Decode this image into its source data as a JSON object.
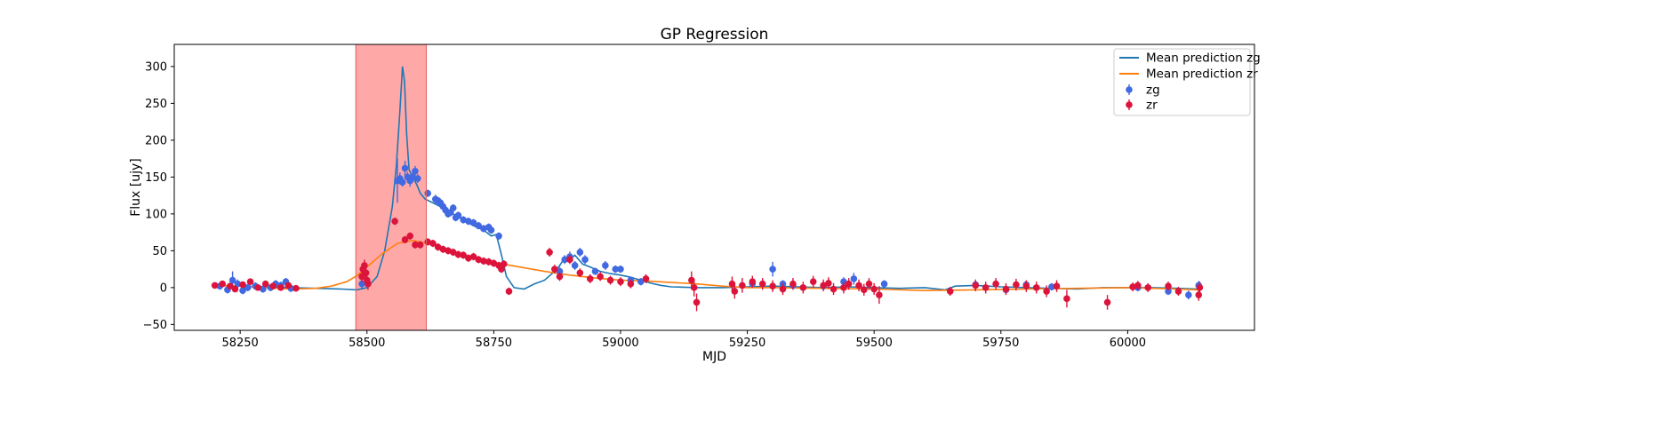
{
  "chart_data": {
    "type": "scatter",
    "title": "GP Regression",
    "xlabel": "MJD",
    "ylabel": "Flux [ujy]",
    "xlim": [
      58120,
      60250
    ],
    "ylim": [
      -58,
      330
    ],
    "xticks": [
      58250,
      58500,
      58750,
      59000,
      59250,
      59500,
      59750,
      60000
    ],
    "yticks": [
      -50,
      0,
      50,
      100,
      150,
      200,
      250,
      300
    ],
    "grid": false,
    "legend_position": "top-right",
    "highlight_region": {
      "x": [
        58478,
        58617
      ],
      "color": "#ff9f9f"
    },
    "lines": [
      {
        "name": "Mean prediction zg",
        "color": "#1f77b4",
        "x": [
          58200,
          58250,
          58300,
          58350,
          58400,
          58450,
          58480,
          58500,
          58520,
          58535,
          58550,
          58558,
          58565,
          58570,
          58574,
          58578,
          58583,
          58590,
          58598,
          58605,
          58615,
          58630,
          58650,
          58670,
          58690,
          58710,
          58730,
          58745,
          58755,
          58765,
          58775,
          58790,
          58810,
          58830,
          58850,
          58870,
          58880,
          58890,
          58900,
          58910,
          58925,
          58940,
          58960,
          58980,
          59000,
          59020,
          59040,
          59060,
          59080,
          59100,
          59150,
          59200,
          59250,
          59300,
          59350,
          59400,
          59450,
          59500,
          59550,
          59600,
          59640,
          59660,
          59700,
          59750,
          59800,
          59850,
          59900,
          59950,
          60000,
          60050,
          60100,
          60140
        ],
        "y": [
          3,
          2,
          1,
          0,
          -1,
          -2,
          -3,
          0,
          15,
          50,
          110,
          165,
          240,
          300,
          280,
          210,
          160,
          150,
          140,
          128,
          120,
          115,
          108,
          100,
          92,
          84,
          78,
          70,
          72,
          45,
          15,
          0,
          -2,
          5,
          10,
          22,
          30,
          40,
          38,
          44,
          32,
          28,
          22,
          19,
          17,
          14,
          10,
          6,
          3,
          1,
          0,
          0,
          1,
          2,
          1,
          0,
          1,
          0,
          -1,
          0,
          -3,
          2,
          3,
          1,
          0,
          -1,
          -2,
          0,
          0,
          0,
          -1,
          -2
        ]
      },
      {
        "name": "Mean prediction zr",
        "color": "#ff7f0e",
        "x": [
          58200,
          58250,
          58300,
          58350,
          58400,
          58430,
          58460,
          58480,
          58500,
          58530,
          58560,
          58590,
          58620,
          58650,
          58700,
          58750,
          58800,
          58850,
          58900,
          58950,
          59000,
          59050,
          59100,
          59150,
          59200,
          59250,
          59300,
          59400,
          59500,
          59600,
          59700,
          59800,
          59900,
          60000,
          60050,
          60100,
          60140
        ],
        "y": [
          3,
          2,
          0,
          -2,
          -1,
          2,
          8,
          16,
          28,
          46,
          60,
          64,
          60,
          54,
          42,
          34,
          28,
          22,
          17,
          13,
          10,
          9,
          7,
          5,
          2,
          0,
          0,
          -1,
          -2,
          -4,
          -3,
          -2,
          -1,
          0,
          -1,
          -2,
          -3
        ]
      }
    ],
    "series": [
      {
        "name": "zg",
        "color": "#4169e1",
        "x": [
          58210,
          58225,
          58235,
          58245,
          58255,
          58265,
          58280,
          58295,
          58310,
          58320,
          58330,
          58340,
          58350,
          58490,
          58560,
          58565,
          58570,
          58575,
          58580,
          58585,
          58590,
          58595,
          58600,
          58620,
          58635,
          58640,
          58645,
          58650,
          58655,
          58660,
          58665,
          58670,
          58675,
          58680,
          58690,
          58700,
          58710,
          58720,
          58730,
          58740,
          58745,
          58760,
          58880,
          58890,
          58900,
          58910,
          58920,
          58930,
          58950,
          58970,
          58990,
          59000,
          59020,
          59040,
          59260,
          59300,
          59320,
          59340,
          59400,
          59440,
          59460,
          59520,
          59700,
          59760,
          59800,
          59850,
          60020,
          60080,
          60120,
          60140
        ],
        "y": [
          2,
          -3,
          10,
          5,
          -4,
          0,
          2,
          -2,
          0,
          5,
          3,
          8,
          -1,
          5,
          145,
          148,
          143,
          162,
          150,
          145,
          150,
          158,
          148,
          128,
          120,
          118,
          115,
          110,
          105,
          100,
          102,
          108,
          95,
          98,
          92,
          90,
          88,
          84,
          80,
          82,
          78,
          70,
          22,
          38,
          42,
          30,
          48,
          38,
          22,
          30,
          25,
          25,
          10,
          8,
          5,
          25,
          5,
          3,
          2,
          8,
          12,
          5,
          4,
          -3,
          4,
          1,
          0,
          -5,
          -10,
          3
        ],
        "err": [
          5,
          5,
          12,
          6,
          5,
          5,
          5,
          5,
          5,
          5,
          5,
          5,
          5,
          6,
          30,
          8,
          6,
          10,
          7,
          8,
          6,
          7,
          6,
          5,
          6,
          5,
          5,
          5,
          5,
          5,
          5,
          5,
          5,
          5,
          5,
          5,
          5,
          5,
          5,
          5,
          5,
          5,
          6,
          6,
          7,
          6,
          6,
          6,
          5,
          6,
          5,
          5,
          5,
          5,
          5,
          10,
          5,
          5,
          5,
          6,
          8,
          5,
          5,
          5,
          5,
          5,
          5,
          5,
          6,
          6
        ]
      },
      {
        "name": "zr",
        "color": "#dc143c",
        "x": [
          58200,
          58215,
          58230,
          58240,
          58255,
          58270,
          58285,
          58300,
          58315,
          58330,
          58345,
          58360,
          58490,
          58492,
          58495,
          58498,
          58500,
          58502,
          58555,
          58575,
          58585,
          58595,
          58605,
          58620,
          58630,
          58640,
          58650,
          58660,
          58670,
          58680,
          58690,
          58700,
          58710,
          58720,
          58730,
          58740,
          58750,
          58760,
          58765,
          58770,
          58780,
          58860,
          58870,
          58880,
          58900,
          58920,
          58940,
          58960,
          58980,
          59000,
          59020,
          59050,
          59140,
          59145,
          59150,
          59220,
          59225,
          59240,
          59260,
          59280,
          59300,
          59320,
          59340,
          59360,
          59380,
          59400,
          59410,
          59420,
          59440,
          59450,
          59470,
          59480,
          59490,
          59500,
          59510,
          59650,
          59700,
          59720,
          59740,
          59760,
          59780,
          59800,
          59820,
          59840,
          59860,
          59880,
          59960,
          60010,
          60020,
          60040,
          60080,
          60100,
          60140,
          60142
        ],
        "y": [
          3,
          5,
          2,
          -2,
          4,
          8,
          0,
          5,
          2,
          0,
          3,
          -1,
          15,
          25,
          30,
          20,
          10,
          5,
          90,
          65,
          70,
          58,
          58,
          62,
          60,
          55,
          52,
          50,
          48,
          45,
          44,
          40,
          42,
          38,
          36,
          35,
          33,
          30,
          25,
          32,
          -5,
          48,
          25,
          15,
          38,
          20,
          12,
          15,
          10,
          8,
          5,
          12,
          10,
          0,
          -20,
          5,
          -5,
          3,
          8,
          5,
          2,
          -2,
          5,
          0,
          8,
          3,
          6,
          -2,
          0,
          5,
          3,
          -3,
          5,
          -2,
          -10,
          -5,
          3,
          0,
          5,
          -2,
          4,
          2,
          0,
          -5,
          2,
          -15,
          -20,
          1,
          3,
          0,
          2,
          -5,
          -10,
          0
        ],
        "err": [
          4,
          4,
          4,
          4,
          4,
          4,
          4,
          4,
          4,
          4,
          4,
          4,
          8,
          8,
          8,
          8,
          8,
          8,
          5,
          5,
          5,
          5,
          5,
          5,
          5,
          5,
          5,
          5,
          5,
          5,
          5,
          5,
          5,
          5,
          5,
          5,
          5,
          5,
          5,
          5,
          5,
          6,
          6,
          6,
          6,
          6,
          6,
          6,
          6,
          6,
          6,
          6,
          12,
          12,
          12,
          10,
          10,
          10,
          8,
          8,
          8,
          8,
          8,
          8,
          8,
          8,
          8,
          8,
          8,
          8,
          8,
          8,
          8,
          8,
          12,
          6,
          8,
          8,
          8,
          8,
          8,
          8,
          8,
          8,
          8,
          12,
          10,
          6,
          6,
          6,
          6,
          6,
          8,
          8
        ]
      }
    ]
  }
}
